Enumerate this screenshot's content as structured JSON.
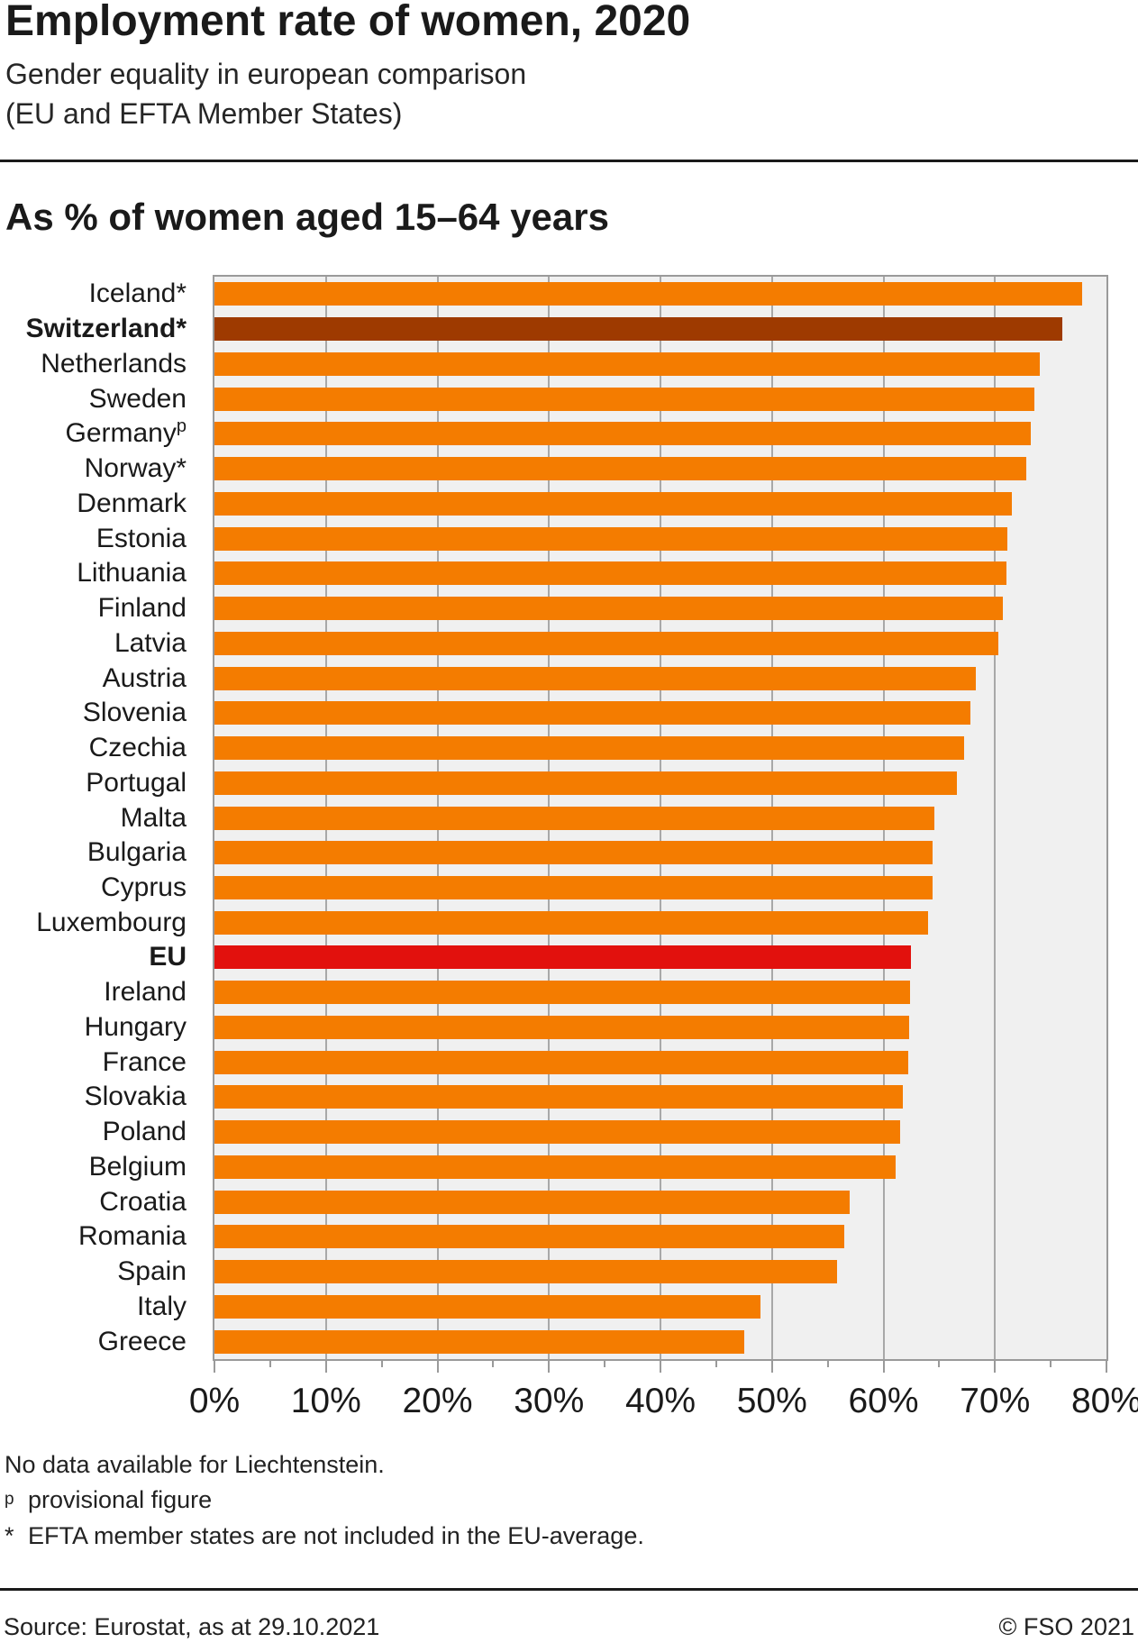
{
  "header": {
    "title": "Employment rate of women, 2020",
    "subtitle_line1": "Gender equality in european comparison",
    "subtitle_line2": "(EU and EFTA Member States)",
    "axis_unit_heading": "As % of women aged 15–64 years"
  },
  "chart_data": {
    "type": "bar",
    "orientation": "horizontal",
    "title": "Employment rate of women, 2020",
    "ylabel": "",
    "xlabel": "As % of women aged 15–64 years",
    "xlim": [
      0,
      80
    ],
    "x_tick_labels": [
      "0%",
      "10%",
      "20%",
      "30%",
      "40%",
      "50%",
      "60%",
      "70%",
      "80%"
    ],
    "grid": true,
    "legend": "none",
    "colors": {
      "default": "#F47C00",
      "switzerland": "#9E3A00",
      "eu": "#E2110D"
    },
    "plot_background": "#F0F0F0",
    "gridline_color": "#A8A8A8",
    "countries": [
      {
        "label": "Iceland*",
        "value": 77.8
      },
      {
        "label": "Switzerland*",
        "value": 76.0,
        "color": "switzerland",
        "bold": true
      },
      {
        "label": "Netherlands",
        "value": 74.0
      },
      {
        "label": "Sweden",
        "value": 73.5
      },
      {
        "label": "Germany",
        "sup": "p",
        "value": 73.2
      },
      {
        "label": "Norway*",
        "value": 72.8
      },
      {
        "label": "Denmark",
        "value": 71.5
      },
      {
        "label": "Estonia",
        "value": 71.1
      },
      {
        "label": "Lithuania",
        "value": 71.0
      },
      {
        "label": "Finland",
        "value": 70.7
      },
      {
        "label": "Latvia",
        "value": 70.3
      },
      {
        "label": "Austria",
        "value": 68.3
      },
      {
        "label": "Slovenia",
        "value": 67.8
      },
      {
        "label": "Czechia",
        "value": 67.2
      },
      {
        "label": "Portugal",
        "value": 66.6
      },
      {
        "label": "Malta",
        "value": 64.6
      },
      {
        "label": "Bulgaria",
        "value": 64.4
      },
      {
        "label": "Cyprus",
        "value": 64.4
      },
      {
        "label": "Luxembourg",
        "value": 64.0
      },
      {
        "label": "EU",
        "value": 62.5,
        "color": "eu",
        "bold": true
      },
      {
        "label": "Ireland",
        "value": 62.4
      },
      {
        "label": "Hungary",
        "value": 62.3
      },
      {
        "label": "France",
        "value": 62.2
      },
      {
        "label": "Slovakia",
        "value": 61.7
      },
      {
        "label": "Poland",
        "value": 61.5
      },
      {
        "label": "Belgium",
        "value": 61.1
      },
      {
        "label": "Croatia",
        "value": 57.0
      },
      {
        "label": "Romania",
        "value": 56.5
      },
      {
        "label": "Spain",
        "value": 55.8
      },
      {
        "label": "Italy",
        "value": 49.0
      },
      {
        "label": "Greece",
        "value": 47.5
      }
    ]
  },
  "footnotes": {
    "line1": "No data available for Liechtenstein.",
    "line2_marker": "p",
    "line2_text": "provisional figure",
    "line3_marker": "*",
    "line3_text": "EFTA member states are not included in the EU-average."
  },
  "footer": {
    "source": "Source: Eurostat, as at 29.10.2021",
    "copyright": "© FSO 2021"
  }
}
